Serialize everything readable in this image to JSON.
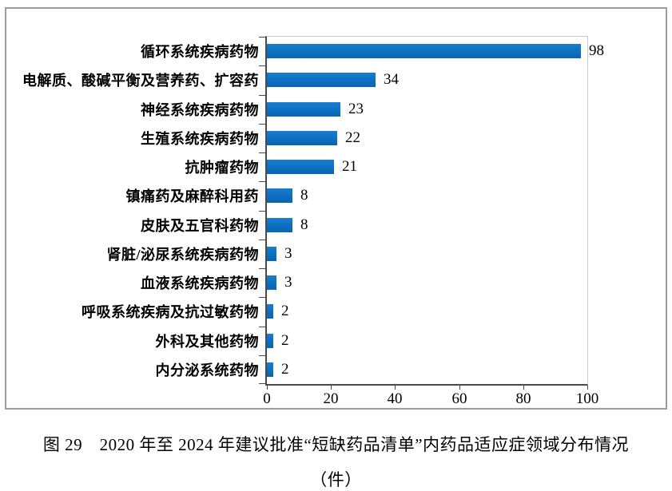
{
  "figure": {
    "caption_line1": "图 29　2020 年至 2024 年建议批准“短缺药品清单”内药品适应症领域分布情况",
    "caption_line2": "（件）"
  },
  "colors": {
    "bar": "#0d72c4",
    "axis_line": "#4a4a4a",
    "plot_border": "#c9c9c9",
    "outer_frame": "#9c9c9c",
    "text": "#000000"
  },
  "chart_data": {
    "type": "bar",
    "orientation": "horizontal",
    "title": "图 29　2020 年至 2024 年建议批准“短缺药品清单”内药品适应症领域分布情况（件）",
    "xlabel": "",
    "ylabel": "",
    "categories": [
      "循环系统疾病药物",
      "电解质、酸碱平衡及营养药、扩容药",
      "神经系统疾病药物",
      "生殖系统疾病药物",
      "抗肿瘤药物",
      "镇痛药及麻醉科用药",
      "皮肤及五官科药物",
      "肾脏/泌尿系统疾病药物",
      "血液系统疾病药物",
      "呼吸系统疾病及抗过敏药物",
      "外科及其他药物",
      "内分泌系统药物"
    ],
    "values": [
      98,
      34,
      23,
      22,
      21,
      8,
      8,
      3,
      3,
      2,
      2,
      2
    ],
    "data_labels": [
      "98",
      "34",
      "23",
      "22",
      "21",
      "8",
      "8",
      "3",
      "3",
      "2",
      "2",
      "2"
    ],
    "xlim": [
      0,
      100
    ],
    "xticks": [
      0,
      20,
      40,
      60,
      80,
      100
    ],
    "grid": false,
    "legend_position": "none"
  }
}
